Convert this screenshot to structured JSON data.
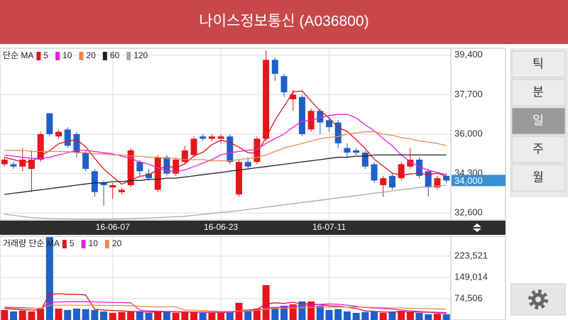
{
  "header": {
    "title": "나이스정보통신 (A036800)"
  },
  "period_buttons": [
    "틱",
    "분",
    "일",
    "주",
    "월"
  ],
  "selected_button": 2,
  "chart_data": [
    {
      "type": "candlestick",
      "legend_title": "단순 MA",
      "categories": [
        null,
        null,
        null,
        null,
        null,
        null,
        null,
        null,
        null,
        null,
        null,
        null,
        "16-06-07",
        null,
        null,
        null,
        null,
        null,
        null,
        null,
        null,
        null,
        null,
        null,
        "16-06-23",
        null,
        null,
        null,
        null,
        null,
        null,
        null,
        null,
        null,
        null,
        null,
        "16-07-11",
        null,
        null,
        null,
        null,
        null,
        null,
        null,
        null,
        null,
        null,
        null,
        null,
        null
      ],
      "open": [
        34700,
        34700,
        34600,
        34500,
        34900,
        36900,
        35900,
        36200,
        36000,
        35200,
        34400,
        33900,
        33700,
        33500,
        33800,
        34800,
        34300,
        33600,
        35000,
        34300,
        34800,
        35100,
        35900,
        35800,
        35800,
        35900,
        33400,
        34800,
        34800,
        35800,
        39200,
        38500,
        37500,
        37600,
        36200,
        37000,
        36600,
        36500,
        35400,
        35300,
        35200,
        34700,
        33800,
        34200,
        34100,
        34600,
        34900,
        34400,
        33700,
        34200
      ],
      "high": [
        35000,
        34800,
        35400,
        35300,
        36100,
        36900,
        36200,
        36300,
        36100,
        35300,
        34500,
        34000,
        33900,
        33700,
        35400,
        34900,
        34500,
        35100,
        35100,
        35000,
        35500,
        35900,
        36000,
        36000,
        36000,
        36000,
        34900,
        35000,
        35900,
        39600,
        39300,
        38600,
        37900,
        37700,
        37100,
        37100,
        36700,
        36600,
        35600,
        35400,
        35300,
        34800,
        34200,
        34300,
        34800,
        35400,
        35000,
        34500,
        34200,
        34300
      ],
      "low": [
        34600,
        34500,
        34400,
        33500,
        34800,
        35900,
        35800,
        35400,
        35000,
        34400,
        33300,
        32900,
        33200,
        33400,
        33700,
        34200,
        34000,
        33500,
        34200,
        34200,
        34700,
        35000,
        35700,
        35700,
        35600,
        34700,
        33300,
        34500,
        34700,
        35700,
        38300,
        37600,
        37000,
        35900,
        36100,
        36000,
        36100,
        35400,
        35000,
        35100,
        34500,
        33900,
        33300,
        33600,
        34000,
        34500,
        34100,
        33300,
        33600,
        33900
      ],
      "close": [
        34900,
        34600,
        34900,
        34900,
        36000,
        36000,
        36100,
        35500,
        35200,
        34500,
        33500,
        33800,
        33800,
        33600,
        35300,
        34400,
        34100,
        35000,
        34300,
        34900,
        35300,
        35800,
        35800,
        35900,
        35900,
        34800,
        34800,
        34600,
        35800,
        39200,
        38600,
        37800,
        37700,
        36000,
        37000,
        36500,
        36300,
        35600,
        35200,
        35200,
        34600,
        34000,
        34100,
        33700,
        34700,
        34900,
        34200,
        33700,
        34100,
        34000
      ],
      "up_color": "#e8141b",
      "down_color": "#1f5fc8",
      "ma_series": [
        {
          "name": "5",
          "color": "#d9161c",
          "values": [
            35000,
            34900,
            34800,
            34800,
            35060,
            35280,
            35580,
            35700,
            35760,
            35460,
            34960,
            34500,
            34160,
            33840,
            34000,
            34180,
            34240,
            34480,
            34620,
            34540,
            34720,
            35060,
            35220,
            35540,
            35740,
            35640,
            35440,
            35200,
            35180,
            35840,
            36600,
            37200,
            37820,
            37860,
            37420,
            37000,
            36700,
            36280,
            36120,
            35760,
            35380,
            34920,
            34620,
            34320,
            34220,
            34280,
            34320,
            34240,
            34320,
            34180
          ]
        },
        {
          "name": "10",
          "color": "#e81ee0",
          "values": [
            35100,
            35050,
            35000,
            34950,
            34950,
            35000,
            35100,
            35200,
            35300,
            35300,
            35250,
            35200,
            35150,
            35050,
            34950,
            34800,
            34700,
            34550,
            34400,
            34400,
            34450,
            34600,
            34750,
            34900,
            35100,
            35200,
            35250,
            35300,
            35350,
            35600,
            35800,
            36000,
            36300,
            36550,
            36600,
            36700,
            36800,
            36850,
            36850,
            36700,
            36400,
            36150,
            35800,
            35500,
            35100,
            34800,
            34600,
            34450,
            34350,
            34250
          ]
        },
        {
          "name": "20",
          "color": "#e88b4f",
          "values": [
            35300,
            35300,
            35300,
            35250,
            35250,
            35250,
            35250,
            35250,
            35200,
            35200,
            35150,
            35150,
            35100,
            35100,
            35050,
            35050,
            35000,
            35000,
            34950,
            34950,
            34900,
            34900,
            34900,
            34850,
            34850,
            34850,
            34900,
            34950,
            35000,
            35100,
            35250,
            35400,
            35500,
            35600,
            35700,
            35800,
            35850,
            35900,
            36000,
            36050,
            36100,
            36100,
            36000,
            35950,
            35850,
            35800,
            35700,
            35650,
            35600,
            35500
          ]
        },
        {
          "name": "60",
          "color": "#222222",
          "values": [
            33400,
            33450,
            33500,
            33550,
            33600,
            33650,
            33700,
            33750,
            33800,
            33850,
            33900,
            33900,
            33950,
            33950,
            34000,
            34000,
            34050,
            34050,
            34100,
            34100,
            34150,
            34200,
            34250,
            34300,
            34350,
            34400,
            34450,
            34500,
            34550,
            34600,
            34650,
            34700,
            34750,
            34800,
            34850,
            34900,
            34950,
            35000,
            35000,
            35050,
            35050,
            35100,
            35100,
            35100,
            35100,
            35100,
            35100,
            35100,
            35100,
            35100
          ]
        },
        {
          "name": "120",
          "color": "#aaaaaa",
          "values": [
            32550,
            32500,
            32450,
            32400,
            32380,
            32360,
            32350,
            32350,
            32340,
            32340,
            32340,
            32340,
            32340,
            32350,
            32360,
            32370,
            32380,
            32400,
            32420,
            32440,
            32460,
            32500,
            32540,
            32580,
            32620,
            32660,
            32700,
            32750,
            32800,
            32850,
            32900,
            32950,
            33000,
            33050,
            33100,
            33150,
            33200,
            33250,
            33300,
            33350,
            33400,
            33450,
            33500,
            33550,
            33600,
            33650,
            33700,
            33720,
            33760,
            33800
          ]
        }
      ],
      "ylim": [
        32300,
        39700
      ],
      "yticks": [
        {
          "value": 39400,
          "label": "39,400"
        },
        {
          "value": 37700,
          "label": "37,700"
        },
        {
          "value": 36000,
          "label": "36,000"
        },
        {
          "value": 34300,
          "label": "34,300"
        },
        {
          "value": 32600,
          "label": "32,600"
        }
      ],
      "last_price": {
        "value": 34000,
        "label": "34,000"
      },
      "last_price_color": "#3a8fd0",
      "grid": true
    },
    {
      "type": "bar",
      "legend_title": "거래량 단순 MA",
      "values": [
        35000,
        30000,
        33000,
        30000,
        40000,
        290000,
        40000,
        35000,
        40000,
        38000,
        35000,
        30000,
        25000,
        28000,
        30000,
        30000,
        25000,
        30000,
        30000,
        25000,
        30000,
        28000,
        25000,
        25000,
        25000,
        30000,
        60000,
        30000,
        40000,
        122000,
        45000,
        50000,
        55000,
        65000,
        65000,
        50000,
        35000,
        38000,
        30000,
        25000,
        28000,
        30000,
        25000,
        28000,
        32000,
        28000,
        25000,
        20000,
        22000,
        20000
      ],
      "ma_series": [
        {
          "name": "5",
          "color": "#d9161c",
          "values": [
            40000,
            38000,
            36000,
            35000,
            34000,
            90000,
            92000,
            90000,
            90000,
            88000,
            38000,
            35000,
            33000,
            32000,
            30000,
            29000,
            28000,
            28000,
            29000,
            28000,
            28000,
            28000,
            27000,
            27000,
            26000,
            27000,
            33000,
            35000,
            37000,
            56000,
            60000,
            58000,
            62000,
            56000,
            56000,
            54000,
            50000,
            48000,
            45000,
            40000,
            32000,
            30000,
            28000,
            28000,
            29000,
            28000,
            28000,
            27000,
            25000,
            23000
          ]
        },
        {
          "name": "10",
          "color": "#e81ee0",
          "values": [
            45000,
            44000,
            43000,
            42000,
            40000,
            62000,
            63000,
            64000,
            64000,
            64000,
            63000,
            62000,
            61000,
            61000,
            60000,
            34000,
            32000,
            31000,
            30000,
            29000,
            29000,
            28000,
            28000,
            28000,
            27000,
            27000,
            30000,
            31000,
            33000,
            42000,
            44000,
            46000,
            48000,
            50000,
            52000,
            55000,
            56000,
            55000,
            52000,
            48000,
            44000,
            42000,
            40000,
            38000,
            35000,
            32000,
            30000,
            28000,
            27000,
            26000
          ]
        },
        {
          "name": "20",
          "color": "#e88b4f",
          "values": [
            42000,
            42000,
            41000,
            41000,
            41000,
            52000,
            52000,
            52000,
            52000,
            52000,
            52000,
            51000,
            51000,
            51000,
            50000,
            48000,
            47000,
            46000,
            46000,
            46000,
            35000,
            34000,
            33000,
            32000,
            30000,
            30000,
            32000,
            33000,
            34000,
            38000,
            40000,
            41000,
            42000,
            43000,
            44000,
            45000,
            45000,
            45000,
            45000,
            45000,
            45000,
            44000,
            43000,
            42000,
            42000,
            41000,
            40000,
            40000,
            39000,
            38000
          ]
        }
      ],
      "ylim": [
        0,
        293000
      ],
      "yticks": [
        {
          "value": 223521,
          "label": "223,521"
        },
        {
          "value": 149014,
          "label": "149,014"
        },
        {
          "value": 74506,
          "label": "74,506"
        }
      ],
      "grid": true
    }
  ]
}
